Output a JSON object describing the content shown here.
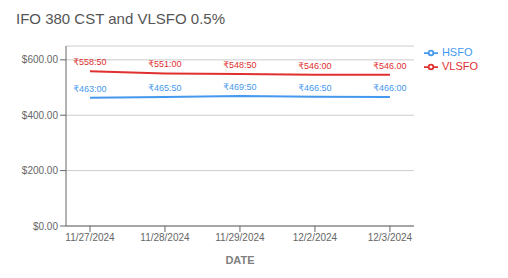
{
  "chart_data": {
    "type": "line",
    "title": "IFO 380 CST and VLSFO 0.5%",
    "x_label": "DATE",
    "categories": [
      "11/27/2024",
      "11/28/2024",
      "11/29/2024",
      "12/2/2024",
      "12/3/2024"
    ],
    "series": [
      {
        "name": "VLSFO",
        "color": "#e03030",
        "values": [
          558.5,
          551.0,
          548.5,
          546.0,
          546.0
        ],
        "value_labels": [
          "₹558:50",
          "₹551:00",
          "₹548:50",
          "₹546:00",
          "₹546.00"
        ]
      },
      {
        "name": "HSFO",
        "color": "#4499ee",
        "values": [
          463.0,
          465.5,
          469.5,
          466.5,
          466.0
        ],
        "value_labels": [
          "₹463:00",
          "₹465:50",
          "₹469:50",
          "₹466:50",
          "₹466:00"
        ]
      }
    ],
    "ylim": [
      0,
      650
    ],
    "yticks": [
      {
        "value": 0,
        "label": "$0.00"
      },
      {
        "value": 200,
        "label": "$200.00"
      },
      {
        "value": 400,
        "label": "$400.00"
      },
      {
        "value": 600,
        "label": "$600.00"
      }
    ],
    "grid": true,
    "legend": "right",
    "data_labels": true
  }
}
